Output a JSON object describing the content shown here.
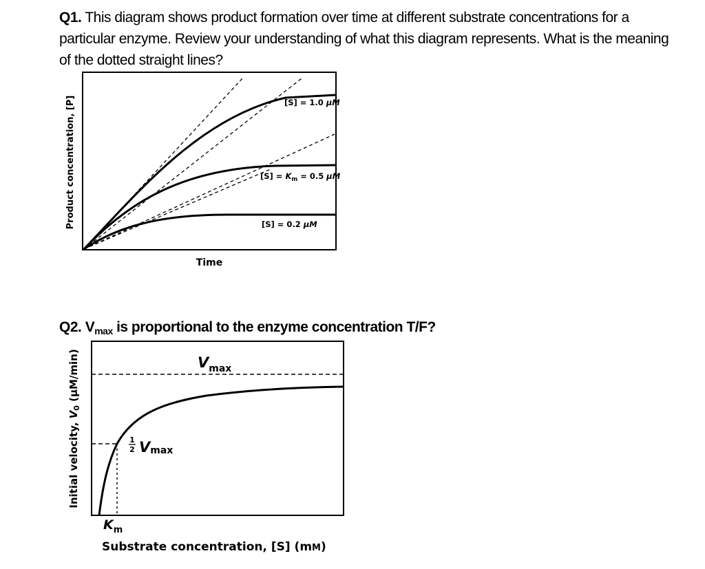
{
  "q1": {
    "number": "Q1.",
    "text": " This diagram shows product formation over time at different substrate concentrations for a particular enzyme. Review your understanding of what this diagram represents. What is the meaning of the dotted straight lines?"
  },
  "q2": {
    "number": "Q2.",
    "text_prefix": " V",
    "text_sub": "max",
    "text_suffix": " is proportional to the enzyme concentration T/F?"
  },
  "chart_data": [
    {
      "type": "line",
      "xlabel": "Time",
      "ylabel": "Product concentration, [P]",
      "series": [
        {
          "name": "[S] = 1.0 μM"
        },
        {
          "name": "[S] = Km = 0.5 μM"
        },
        {
          "name": "[S] = 0.2 μM"
        }
      ],
      "annotations": [
        "dashed straight tangent lines at the origin for each curve"
      ]
    },
    {
      "type": "line",
      "xlabel": "Substrate concentration, [S] (mM)",
      "ylabel": "Initial velocity, V0 (μM/min)",
      "annotations": [
        "Vmax",
        "1/2 Vmax",
        "Km"
      ]
    }
  ],
  "chart1": {
    "xlabel": "Time",
    "ylabel": "Product concentration, [P]",
    "label_s1_text": "[S] = 1.0 ",
    "label_s1_unit": "μM",
    "label_s2_pre": "[S] = ",
    "label_s2_k": "K",
    "label_s2_sub": "m",
    "label_s2_post": " = 0.5 ",
    "label_s2_unit": "μM",
    "label_s3_text": "[S] = 0.2 ",
    "label_s3_unit": "μM"
  },
  "chart2": {
    "vmax_v": "V",
    "vmax_sub": "max",
    "half_num": "1",
    "half_den": "2",
    "half_v": "V",
    "half_sub": "max",
    "km_k": "K",
    "km_sub": "m",
    "xlabel": "Substrate concentration, [S] (m",
    "xlabel_unit": "M",
    "xlabel_end": ")",
    "ylabel_pre": "Initial velocity, ",
    "ylabel_v": "V",
    "ylabel_sub": "0",
    "ylabel_post": " (μM/min)"
  }
}
